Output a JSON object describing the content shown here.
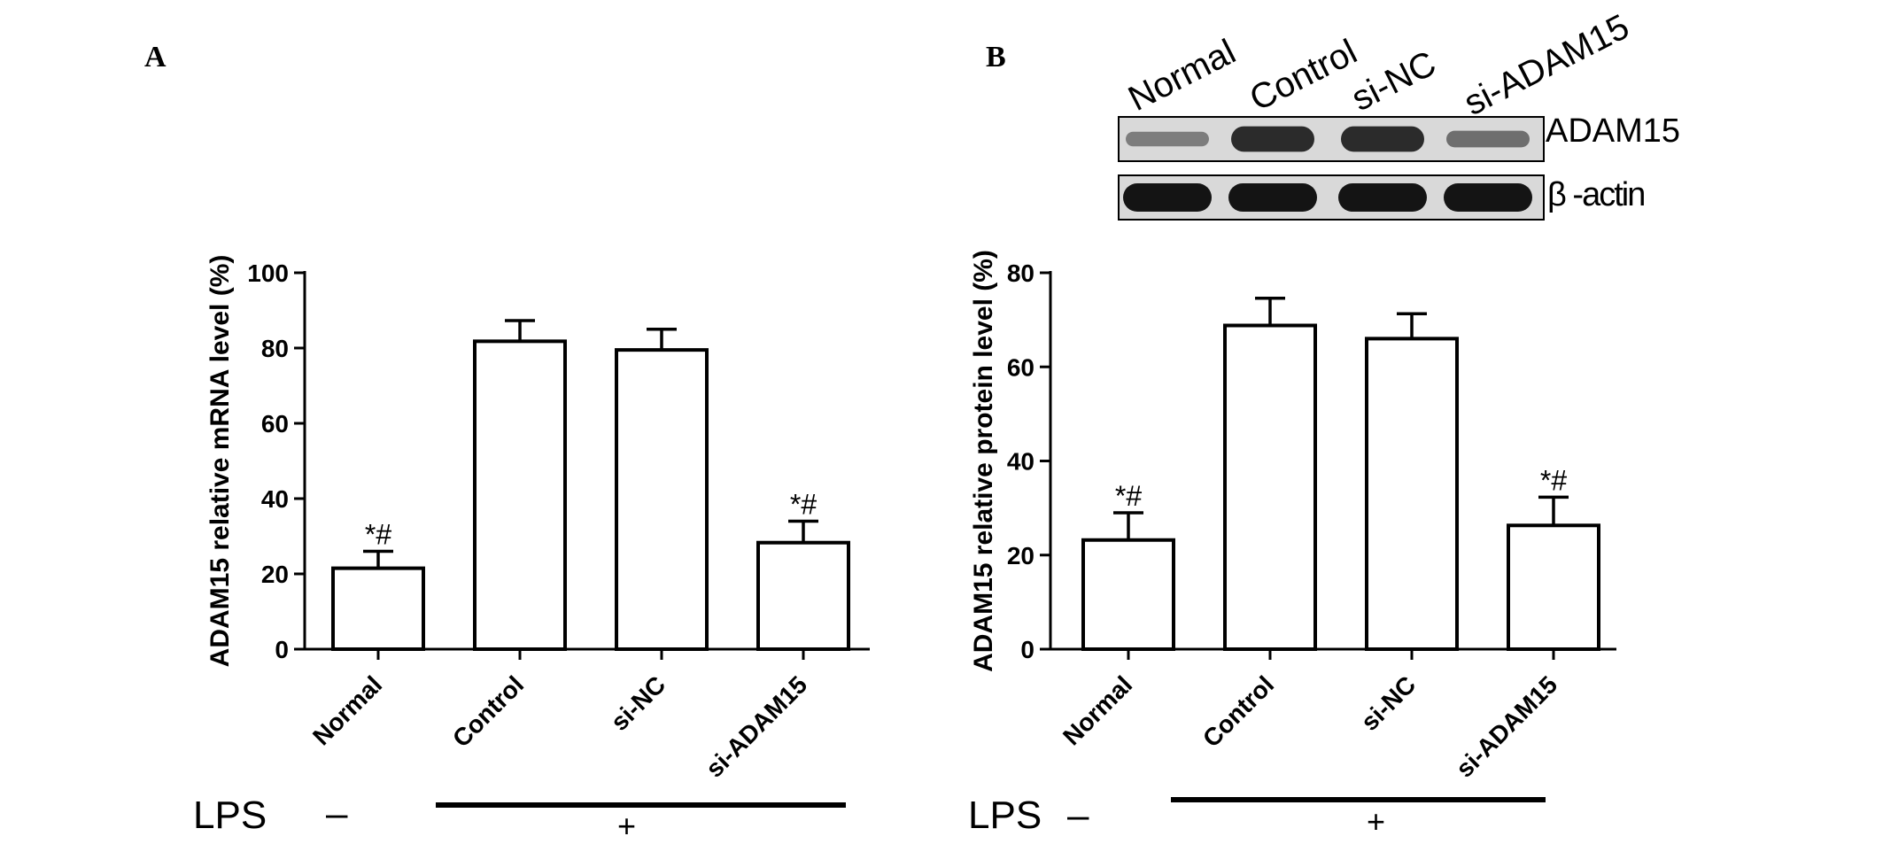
{
  "panels": [
    {
      "panel_label": "A",
      "lps": {
        "label": "LPS",
        "minus": "–",
        "plus": "+"
      },
      "chart_data": {
        "type": "bar",
        "categories": [
          "Normal",
          "Control",
          "si-NC",
          "si-ADAM15"
        ],
        "values": [
          21.5,
          81.8,
          79.5,
          28.3
        ],
        "errors": [
          4.5,
          5.5,
          5.5,
          5.7
        ],
        "annotations": [
          "*#",
          "",
          "",
          "*#"
        ],
        "title": "",
        "xlabel": "",
        "ylabel": "ADAM15 relative mRNA level (%)",
        "ylim": [
          0,
          100
        ],
        "yticks": [
          0,
          20,
          40,
          60,
          80,
          100
        ],
        "grid": false
      }
    },
    {
      "panel_label": "B",
      "lps": {
        "label": "LPS",
        "minus": "–",
        "plus": "+"
      },
      "blot": {
        "lanes": [
          "Normal",
          "Control",
          "si-NC",
          "si-ADAM15"
        ],
        "rows": [
          {
            "label": "ADAM15",
            "intensities": [
              0.3,
              0.85,
              0.85,
              0.4
            ]
          },
          {
            "label": "β -actin",
            "intensities": [
              1,
              1,
              1,
              1
            ]
          }
        ]
      },
      "chart_data": {
        "type": "bar",
        "categories": [
          "Normal",
          "Control",
          "si-NC",
          "si-ADAM15"
        ],
        "values": [
          23.2,
          68.8,
          66.0,
          26.3
        ],
        "errors": [
          5.8,
          5.8,
          5.3,
          6.0
        ],
        "annotations": [
          "*#",
          "",
          "",
          "*#"
        ],
        "title": "",
        "xlabel": "",
        "ylabel": "ADAM15 relative protein level (%)",
        "ylim": [
          0,
          80
        ],
        "yticks": [
          0,
          20,
          40,
          60,
          80
        ],
        "grid": false
      }
    }
  ]
}
